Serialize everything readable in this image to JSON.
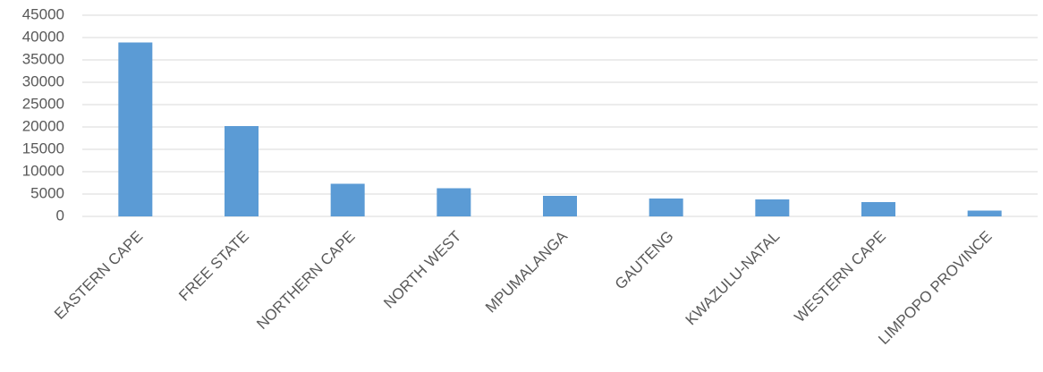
{
  "chart_data": {
    "type": "bar",
    "categories": [
      "EASTERN CAPE",
      "FREE STATE",
      "NORTHERN CAPE",
      "NORTH WEST",
      "MPUMALANGA",
      "GAUTENG",
      "KWAZULU-NATAL",
      "WESTERN CAPE",
      "LIMPOPO PROVINCE"
    ],
    "values": [
      38900,
      20200,
      7300,
      6300,
      4600,
      4000,
      3800,
      3200,
      1300
    ],
    "color": "#5b9bd5",
    "ylim": [
      0,
      45000
    ],
    "yticks": [
      0,
      5000,
      10000,
      15000,
      20000,
      25000,
      30000,
      35000,
      40000,
      45000
    ],
    "grid": true
  }
}
